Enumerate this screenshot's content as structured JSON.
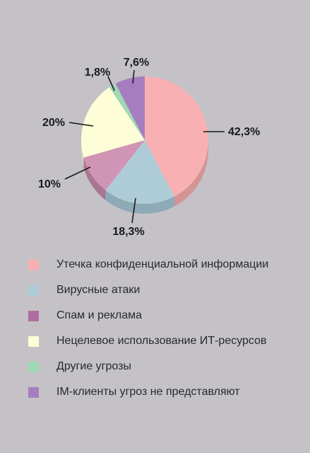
{
  "chart_data": {
    "type": "pie",
    "title": "",
    "slices": [
      {
        "label": "Утечка конфиденциальной информации",
        "value": 42.3,
        "value_label": "42,3%",
        "color": "#f8b0b2",
        "side_color": "#d49496"
      },
      {
        "label": "Вирусные атаки",
        "value": 18.3,
        "value_label": "18,3%",
        "color": "#aeccd8",
        "side_color": "#8eaab6"
      },
      {
        "label": "Спам и реклама",
        "value": 10,
        "value_label": "10%",
        "color": "#d094b4",
        "side_color": "#a87694"
      },
      {
        "label": "Нецелевое использование ИТ-ресурсов",
        "value": 20,
        "value_label": "20%",
        "color": "#fdfdd8",
        "side_color": "#d6d6b4"
      },
      {
        "label": "Другие угрозы",
        "value": 1.8,
        "value_label": "1,8%",
        "color": "#9ed8b4",
        "side_color": "#80b494"
      },
      {
        "label": "IM-клиенты угроз не представляют",
        "value": 7.6,
        "value_label": "7,6%",
        "color": "#a67ec0",
        "side_color": "#8866a0"
      }
    ],
    "legend_colors": [
      "#f8b0b2",
      "#aeccd8",
      "#b06ea0",
      "#fdfdd8",
      "#9ed8b4",
      "#a67ec0"
    ],
    "legend_position": "bottom",
    "start_angle": "12 o'clock",
    "direction": "clockwise",
    "style": "3d-tilted"
  }
}
